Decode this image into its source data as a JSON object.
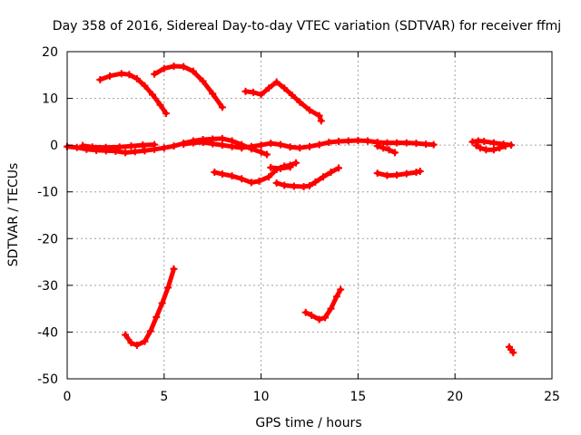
{
  "chart_data": {
    "type": "scatter",
    "title": "Day 358 of 2016, Sidereal Day-to-day VTEC variation (SDTVAR) for receiver ffmj",
    "xlabel": "GPS time / hours",
    "ylabel": "SDTVAR / TECUs",
    "xlim": [
      0,
      25
    ],
    "ylim": [
      -50,
      20
    ],
    "xticks": [
      0,
      5,
      10,
      15,
      20,
      25
    ],
    "yticks": [
      -50,
      -40,
      -30,
      -20,
      -10,
      0,
      10,
      20
    ],
    "xtick_labels": [
      "0",
      "5",
      "10",
      "15",
      "20",
      "25"
    ],
    "ytick_labels": [
      "-50",
      "-40",
      "-30",
      "-20",
      "-10",
      "0",
      "10",
      "20"
    ],
    "grid": true,
    "legend": "none",
    "series_color": "#ff0000",
    "series": [
      {
        "values": [
          [
            1.7,
            14.0
          ],
          [
            2.2,
            14.8
          ],
          [
            2.8,
            15.3
          ],
          [
            3.2,
            15.1
          ],
          [
            3.6,
            14.2
          ],
          [
            4.0,
            12.7
          ],
          [
            4.4,
            10.8
          ],
          [
            4.8,
            8.6
          ],
          [
            5.1,
            6.8
          ]
        ]
      },
      {
        "values": [
          [
            4.5,
            15.2
          ],
          [
            5.0,
            16.4
          ],
          [
            5.5,
            16.9
          ],
          [
            6.0,
            16.8
          ],
          [
            6.5,
            15.8
          ],
          [
            7.0,
            13.7
          ],
          [
            7.5,
            11.0
          ],
          [
            8.0,
            8.1
          ]
        ]
      },
      {
        "values": [
          [
            9.2,
            11.5
          ],
          [
            9.6,
            11.3
          ],
          [
            10.0,
            10.8
          ],
          [
            10.4,
            12.2
          ],
          [
            10.8,
            13.5
          ],
          [
            11.2,
            12.2
          ],
          [
            11.6,
            10.7
          ],
          [
            12.0,
            9.2
          ],
          [
            12.5,
            7.5
          ],
          [
            13.0,
            6.3
          ],
          [
            13.1,
            5.2
          ]
        ]
      },
      {
        "values": [
          [
            0.0,
            -0.3
          ],
          [
            0.5,
            -0.5
          ],
          [
            1.0,
            -0.9
          ],
          [
            1.5,
            -1.1
          ],
          [
            2.0,
            -1.2
          ],
          [
            2.5,
            -1.3
          ],
          [
            3.0,
            -1.6
          ],
          [
            3.5,
            -1.4
          ],
          [
            4.0,
            -1.2
          ],
          [
            4.5,
            -0.9
          ],
          [
            5.0,
            -0.6
          ],
          [
            5.5,
            -0.2
          ],
          [
            6.0,
            0.4
          ],
          [
            6.5,
            0.9
          ],
          [
            7.0,
            1.2
          ],
          [
            7.5,
            1.3
          ],
          [
            8.0,
            1.4
          ],
          [
            8.5,
            0.9
          ],
          [
            9.0,
            0.1
          ],
          [
            9.5,
            -0.8
          ],
          [
            10.0,
            -1.5
          ],
          [
            10.3,
            -2.0
          ]
        ]
      },
      {
        "values": [
          [
            0.8,
            -0.1
          ],
          [
            1.3,
            -0.4
          ],
          [
            2.0,
            -0.5
          ],
          [
            2.7,
            -0.4
          ],
          [
            3.3,
            -0.2
          ],
          [
            3.9,
            0.0
          ],
          [
            4.5,
            0.1
          ]
        ]
      },
      {
        "values": [
          [
            6.0,
            0.2
          ],
          [
            6.5,
            0.5
          ],
          [
            7.0,
            0.6
          ],
          [
            7.5,
            0.3
          ],
          [
            8.0,
            0.0
          ],
          [
            8.5,
            -0.3
          ],
          [
            9.0,
            -0.6
          ],
          [
            9.5,
            -0.3
          ],
          [
            10.0,
            0.0
          ],
          [
            10.5,
            0.4
          ],
          [
            11.0,
            0.1
          ],
          [
            11.5,
            -0.4
          ],
          [
            12.0,
            -0.6
          ],
          [
            12.5,
            -0.3
          ],
          [
            13.0,
            0.1
          ],
          [
            13.5,
            0.6
          ],
          [
            14.0,
            0.8
          ],
          [
            14.5,
            0.9
          ],
          [
            15.0,
            1.0
          ],
          [
            15.5,
            0.9
          ],
          [
            16.0,
            0.6
          ],
          [
            16.5,
            0.5
          ],
          [
            17.0,
            0.5
          ],
          [
            17.5,
            0.5
          ],
          [
            18.0,
            0.4
          ],
          [
            18.5,
            0.2
          ],
          [
            18.9,
            0.1
          ]
        ]
      },
      {
        "values": [
          [
            16.0,
            -0.2
          ],
          [
            16.3,
            -0.6
          ],
          [
            16.6,
            -1.0
          ],
          [
            16.9,
            -1.6
          ]
        ]
      },
      {
        "values": [
          [
            7.6,
            -5.8
          ],
          [
            8.0,
            -6.2
          ],
          [
            8.5,
            -6.6
          ],
          [
            9.0,
            -7.2
          ],
          [
            9.5,
            -8.0
          ],
          [
            9.9,
            -7.7
          ],
          [
            10.4,
            -6.8
          ],
          [
            10.8,
            -5.2
          ],
          [
            11.2,
            -4.5
          ],
          [
            11.5,
            -4.3
          ],
          [
            11.8,
            -3.8
          ]
        ]
      },
      {
        "values": [
          [
            10.5,
            -4.8
          ],
          [
            11.0,
            -5.0
          ],
          [
            11.5,
            -4.7
          ]
        ]
      },
      {
        "values": [
          [
            10.8,
            -8.1
          ],
          [
            11.2,
            -8.6
          ],
          [
            11.7,
            -8.8
          ],
          [
            12.2,
            -8.9
          ],
          [
            12.5,
            -8.7
          ],
          [
            12.8,
            -7.9
          ],
          [
            13.2,
            -6.8
          ],
          [
            13.6,
            -5.8
          ],
          [
            14.0,
            -4.9
          ]
        ]
      },
      {
        "values": [
          [
            16.0,
            -6.0
          ],
          [
            16.5,
            -6.5
          ],
          [
            17.0,
            -6.4
          ],
          [
            17.5,
            -6.1
          ],
          [
            18.0,
            -5.8
          ],
          [
            18.2,
            -5.6
          ]
        ]
      },
      {
        "values": [
          [
            20.9,
            0.7
          ],
          [
            21.2,
            0.9
          ],
          [
            21.5,
            0.8
          ],
          [
            22.0,
            0.5
          ],
          [
            22.5,
            0.2
          ],
          [
            22.9,
            0.0
          ]
        ]
      },
      {
        "values": [
          [
            21.1,
            -0.1
          ],
          [
            21.3,
            -0.6
          ],
          [
            21.6,
            -1.0
          ],
          [
            22.0,
            -1.0
          ],
          [
            22.3,
            -0.6
          ],
          [
            22.6,
            -0.2
          ]
        ]
      },
      {
        "values": [
          [
            3.0,
            -40.6
          ],
          [
            3.3,
            -42.3
          ],
          [
            3.6,
            -42.8
          ],
          [
            4.0,
            -42.0
          ],
          [
            4.3,
            -39.8
          ],
          [
            4.6,
            -36.8
          ],
          [
            4.9,
            -33.8
          ],
          [
            5.2,
            -30.5
          ],
          [
            5.5,
            -26.5
          ]
        ]
      },
      {
        "values": [
          [
            12.3,
            -35.8
          ],
          [
            12.6,
            -36.4
          ],
          [
            13.0,
            -37.3
          ],
          [
            13.3,
            -36.9
          ],
          [
            13.6,
            -35.0
          ],
          [
            13.9,
            -32.4
          ],
          [
            14.1,
            -30.9
          ]
        ]
      },
      {
        "values": [
          [
            22.8,
            -43.2
          ],
          [
            22.9,
            -43.8
          ],
          [
            23.0,
            -44.4
          ]
        ]
      }
    ]
  }
}
